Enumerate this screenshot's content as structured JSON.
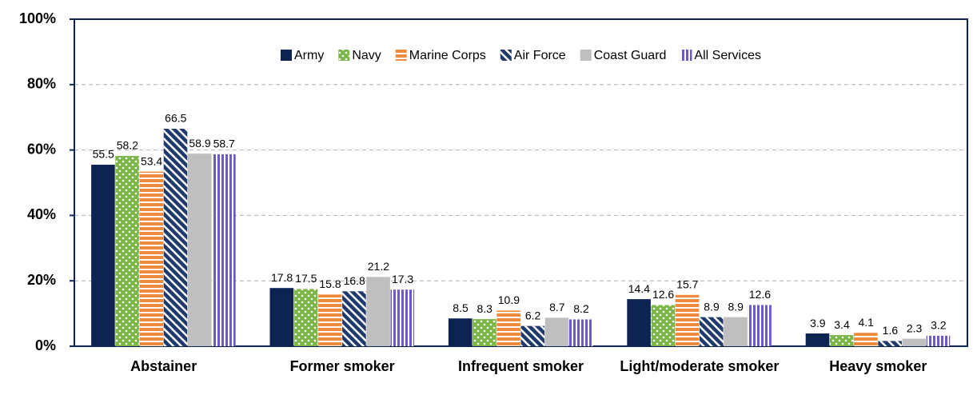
{
  "chart_data": {
    "type": "bar",
    "categories": [
      "Abstainer",
      "Former smoker",
      "Infrequent smoker",
      "Light/moderate smoker",
      "Heavy smoker"
    ],
    "series": [
      {
        "name": "Army",
        "color": "#0d2452",
        "pattern": "solid",
        "values": [
          55.5,
          17.8,
          8.5,
          14.4,
          3.9
        ]
      },
      {
        "name": "Navy",
        "color": "#7ab648",
        "pattern": "dots",
        "values": [
          58.2,
          17.5,
          8.3,
          12.6,
          3.4
        ]
      },
      {
        "name": "Marine Corps",
        "color": "#f08a3c",
        "pattern": "hstripes",
        "values": [
          53.4,
          15.8,
          10.9,
          15.7,
          4.1
        ]
      },
      {
        "name": "Air Force",
        "color": "#1f3a6b",
        "pattern": "diagonal",
        "values": [
          66.5,
          16.8,
          6.2,
          8.9,
          1.6
        ]
      },
      {
        "name": "Coast Guard",
        "color": "#bfbfbf",
        "pattern": "solid",
        "values": [
          58.9,
          21.2,
          8.7,
          8.9,
          2.3
        ]
      },
      {
        "name": "All Services",
        "color": "#6a5acd",
        "pattern": "vstripes",
        "values": [
          58.7,
          17.3,
          8.2,
          12.6,
          3.2
        ]
      }
    ],
    "ylim": [
      0,
      100
    ],
    "yticks": [
      {
        "value": 0,
        "label": "0%"
      },
      {
        "value": 20,
        "label": "20%"
      },
      {
        "value": 40,
        "label": "40%"
      },
      {
        "value": 60,
        "label": "60%"
      },
      {
        "value": 80,
        "label": "80%"
      },
      {
        "value": 100,
        "label": "100%"
      }
    ],
    "grid": true,
    "legend": "top"
  }
}
